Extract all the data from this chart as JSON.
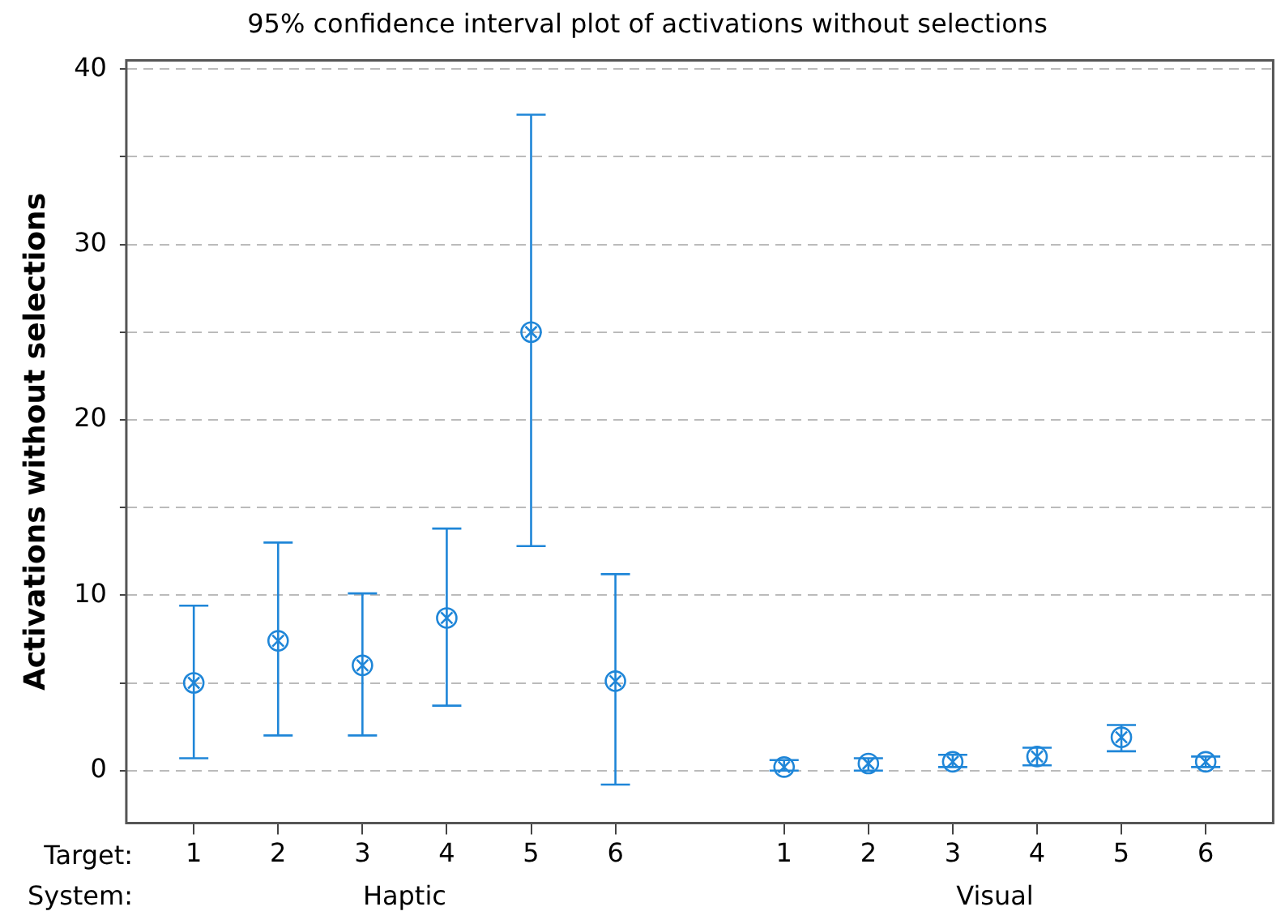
{
  "chart_data": {
    "type": "scatter",
    "title": "95% confidence interval plot of activations without selections",
    "ylabel": "Activations without selections",
    "categories": [
      "1",
      "2",
      "3",
      "4",
      "5",
      "6",
      null,
      "1",
      "2",
      "3",
      "4",
      "5",
      "6"
    ],
    "values": [
      5.0,
      7.4,
      6.0,
      8.7,
      25.0,
      5.1,
      null,
      0.2,
      0.4,
      0.5,
      0.8,
      1.9,
      0.5
    ],
    "errors": [
      [
        0.7,
        9.4
      ],
      [
        2.0,
        13.0
      ],
      [
        2.0,
        10.1
      ],
      [
        3.7,
        13.8
      ],
      [
        12.8,
        37.4
      ],
      [
        -0.8,
        11.2
      ],
      null,
      [
        0.0,
        0.6
      ],
      [
        0.0,
        0.7
      ],
      [
        0.2,
        0.9
      ],
      [
        0.3,
        1.3
      ],
      [
        1.1,
        2.6
      ],
      [
        0.2,
        0.8
      ]
    ],
    "color": "#1f86d8",
    "marker": "circle",
    "ylim": [
      -3,
      40.5
    ],
    "yticks": [
      0,
      {
        "value": 5,
        "label": null
      },
      10,
      {
        "value": 15,
        "label": null
      },
      20,
      {
        "value": 25,
        "label": null
      },
      30,
      {
        "value": 35,
        "label": null
      },
      40
    ],
    "grid": "y",
    "annotations": [
      "Target:",
      "System:",
      "Haptic",
      "Visual"
    ]
  }
}
